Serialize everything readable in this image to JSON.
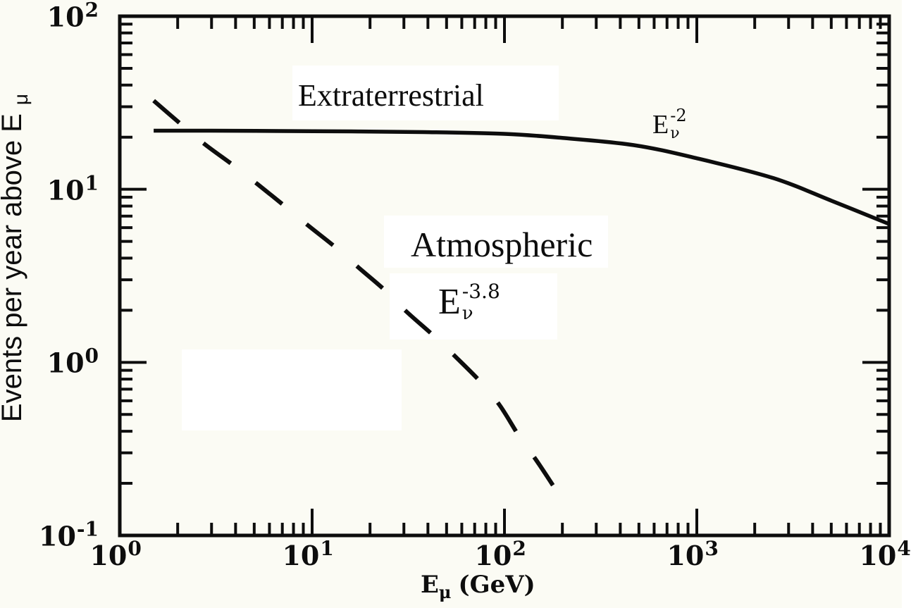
{
  "figure": {
    "background_color": "#fbfbf4",
    "ink_color": "#0d0d0d",
    "backdrop_color": "#ffffff"
  },
  "labels": {
    "extraterrestrial": "Extraterrestrial",
    "atmospheric": "Atmospheric",
    "solid_exp": {
      "base": "E",
      "sub": "ν",
      "sup": "-2"
    },
    "dashed_exp": {
      "base": "E",
      "sub": "ν",
      "sup": "-3.8"
    },
    "x_axis": {
      "base": "E",
      "sub": "μ",
      "rest": "(GeV)"
    },
    "y_axis": {
      "text": "Events per year above E",
      "sub": "μ"
    }
  },
  "chart_data": {
    "type": "line",
    "title": "",
    "xlabel": "E_μ (GeV)",
    "ylabel": "Events per year above E_μ",
    "x_scale": "log",
    "y_scale": "log",
    "xlim": [
      1,
      10000
    ],
    "ylim": [
      0.1,
      100
    ],
    "grid": false,
    "legend_position": "none",
    "x_ticks": [
      {
        "base": "10",
        "exp": "0",
        "value": 1
      },
      {
        "base": "10",
        "exp": "1",
        "value": 10
      },
      {
        "base": "10",
        "exp": "2",
        "value": 100
      },
      {
        "base": "10",
        "exp": "3",
        "value": 1000
      },
      {
        "base": "10",
        "exp": "4",
        "value": 10000
      }
    ],
    "y_ticks": [
      {
        "base": "10",
        "exp": "2",
        "value": 100
      },
      {
        "base": "10",
        "exp": "1",
        "value": 10
      },
      {
        "base": "10",
        "exp": "0",
        "value": 1
      },
      {
        "base": "10",
        "exp": "-1",
        "value": 0.1
      }
    ],
    "series": [
      {
        "name": "Extraterrestrial",
        "flux_label": "E_ν^-2",
        "style": "solid",
        "points": [
          [
            1.5,
            21.8
          ],
          [
            3.0,
            21.8
          ],
          [
            7.0,
            21.7
          ],
          [
            16,
            21.6
          ],
          [
            38,
            21.4
          ],
          [
            100,
            20.9
          ],
          [
            200,
            19.8
          ],
          [
            470,
            18.0
          ],
          [
            1000,
            15.1
          ],
          [
            2500,
            11.6
          ],
          [
            5000,
            8.6
          ],
          [
            10000,
            6.3
          ]
        ]
      },
      {
        "name": "Atmospheric",
        "flux_label": "E_ν^-3.8",
        "style": "dashed",
        "points": [
          [
            1.5,
            32.5
          ],
          [
            2.05,
            24.1
          ],
          [
            2.75,
            18.3
          ],
          [
            3.95,
            13.6
          ],
          [
            5.2,
            10.7
          ],
          [
            7.1,
            8.1
          ],
          [
            9.5,
            6.2
          ],
          [
            13.3,
            4.6
          ],
          [
            17.6,
            3.5
          ],
          [
            24,
            2.6
          ],
          [
            31,
            1.96
          ],
          [
            43,
            1.42
          ],
          [
            56,
            1.07
          ],
          [
            76,
            0.76
          ],
          [
            95,
            0.56
          ],
          [
            120,
            0.37
          ],
          [
            147,
            0.27
          ],
          [
            187,
            0.18
          ],
          [
            192,
            0.17
          ]
        ]
      }
    ]
  }
}
